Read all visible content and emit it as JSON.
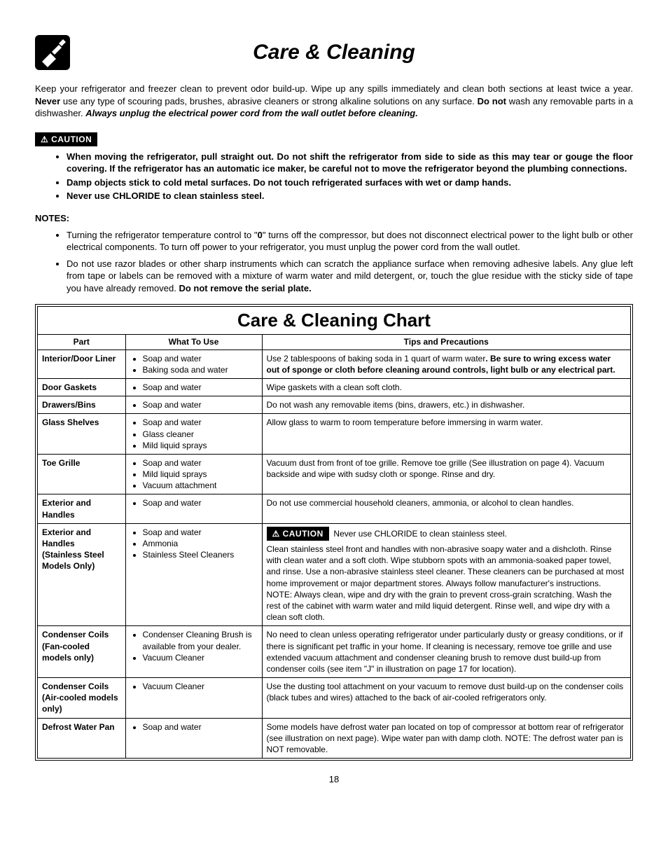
{
  "title": "Care & Cleaning",
  "intro": {
    "lead": "Keep your refrigerator and freezer clean to prevent odor build-up. Wipe up any spills immediately and clean both sections at least twice a year. ",
    "never_strong": "Never",
    "never_rest": " use any type of scouring pads, brushes, abrasive cleaners or strong alkaline solutions on any surface. ",
    "donot_strong": "Do not",
    "donot_rest": " wash any removable parts in a dishwasher. ",
    "unplug_strong": "Always unplug the electrical power cord from the wall outlet before cleaning."
  },
  "caution_label": "CAUTION",
  "caution_items": [
    "When moving the refrigerator, pull straight out. Do not shift the refrigerator from side to side as this may tear or gouge the floor covering. If the refrigerator has an automatic ice maker, be careful not to move the refrigerator beyond the plumbing connections.",
    "Damp objects stick to cold metal surfaces. Do not touch refrigerated surfaces with wet or damp hands.",
    "Never use CHLORIDE to clean stainless steel."
  ],
  "notes_heading": "NOTES:",
  "notes": [
    {
      "pre": "Turning the refrigerator temperature control to \"",
      "bold0": "0",
      "post0": "\" turns off the compressor, but does not disconnect electrical power to the light bulb or other electrical components. To turn off power to your refrigerator, you must unplug the power cord from the wall outlet."
    },
    {
      "pre": "Do not use razor blades or other sharp instruments which can scratch the appliance surface when removing adhesive labels. Any glue left from tape or labels can be removed with a mixture of warm water and mild detergent, or, touch the glue residue with the sticky side of tape you have already removed. ",
      "bold0": "Do not remove the serial plate.",
      "post0": ""
    }
  ],
  "chart_title": "Care & Cleaning Chart",
  "headers": {
    "part": "Part",
    "what": "What To Use",
    "tips": "Tips and Precautions"
  },
  "rows": [
    {
      "part": "Interior/Door Liner",
      "what": [
        "Soap and water",
        "Baking soda and water"
      ],
      "tips_pre": "Use 2 tablespoons of baking soda in 1 quart of warm water",
      "tips_bold": ". Be sure to wring excess water out of sponge or cloth before cleaning around controls, light bulb or any electrical part.",
      "tips_post": ""
    },
    {
      "part": "Door Gaskets",
      "what": [
        "Soap and water"
      ],
      "tips_pre": "Wipe gaskets with a clean soft cloth.",
      "tips_bold": "",
      "tips_post": ""
    },
    {
      "part": "Drawers/Bins",
      "what": [
        "Soap and water"
      ],
      "tips_pre": "Do not wash any removable items (bins, drawers, etc.) in dishwasher.",
      "tips_bold": "",
      "tips_post": ""
    },
    {
      "part": "Glass Shelves",
      "what": [
        "Soap and water",
        "Glass cleaner",
        "Mild liquid sprays"
      ],
      "tips_pre": "Allow glass to warm to room temperature before immersing in warm water.",
      "tips_bold": "",
      "tips_post": ""
    },
    {
      "part": "Toe Grille",
      "what": [
        "Soap and water",
        "Mild liquid sprays",
        "Vacuum attachment"
      ],
      "tips_pre": "Vacuum dust from front of toe grille. Remove toe grille (See illustration on page 4). Vacuum backside and wipe with sudsy cloth or sponge. Rinse and dry.",
      "tips_bold": "",
      "tips_post": ""
    },
    {
      "part": "Exterior and Handles",
      "what": [
        "Soap and water"
      ],
      "tips_pre": "Do not use commercial household cleaners, ammonia, or alcohol to clean handles.",
      "tips_bold": "",
      "tips_post": ""
    },
    {
      "part": "Exterior and Handles\n(Stainless Steel Models Only)",
      "what": [
        "Soap and water",
        "Ammonia",
        "Stainless Steel Cleaners"
      ],
      "has_caution": true,
      "caution_text": "Never use CHLORIDE to clean stainless steel.",
      "tips_pre": "Clean stainless steel front and handles with non-abrasive soapy water and a dishcloth. Rinse with clean water and a soft cloth. Wipe stubborn spots with an ammonia-soaked paper towel, and rinse. Use a non-abrasive stainless steel cleaner. These cleaners can be purchased at most home improvement or major department stores. Always follow manufacturer's instructions. NOTE: Always clean, wipe and dry with the grain to prevent cross-grain scratching. Wash the rest of the cabinet with warm water and mild liquid detergent. Rinse well, and wipe dry with a clean soft cloth.",
      "tips_bold": "",
      "tips_post": ""
    },
    {
      "part": "Condenser Coils\n(Fan-cooled models only)",
      "what": [
        "Condenser Cleaning Brush is available from your dealer.",
        "Vacuum Cleaner"
      ],
      "tips_pre": "No need to clean unless operating refrigerator under particularly dusty or greasy conditions, or if there is significant pet traffic in your home. If cleaning is necessary, remove toe grille and use extended vacuum attachment and condenser cleaning brush to remove dust build-up from condenser coils (see item \"J\" in illustration on page 17 for location).",
      "tips_bold": "",
      "tips_post": ""
    },
    {
      "part": "Condenser Coils\n(Air-cooled models only)",
      "what": [
        "Vacuum Cleaner"
      ],
      "tips_pre": "Use the dusting tool attachment on your vacuum to remove dust build-up on the condenser coils (black tubes and wires) attached to the back of air-cooled refrigerators only.",
      "tips_bold": "",
      "tips_post": ""
    },
    {
      "part": "Defrost Water Pan",
      "what": [
        "Soap and water"
      ],
      "tips_pre": "Some models have defrost water pan located on top of compressor at bottom rear of refrigerator (see illustration on next page). Wipe water pan with damp cloth. NOTE: The defrost water pan is NOT removable.",
      "tips_bold": "",
      "tips_post": ""
    }
  ],
  "page_number": "18"
}
